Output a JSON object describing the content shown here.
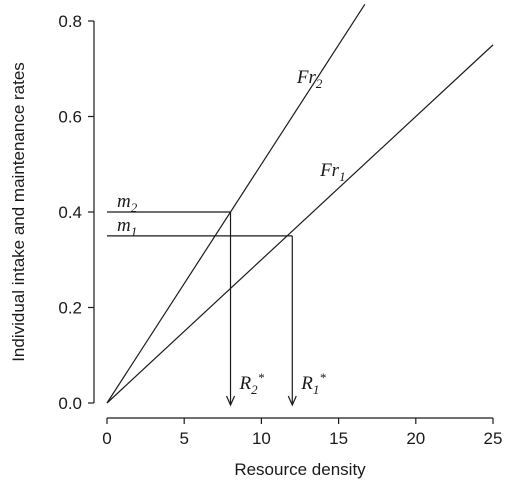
{
  "chart_data": {
    "type": "line",
    "title": "",
    "xlabel": "Resource density",
    "ylabel": "Individual intake and maintenance rates",
    "xlim": [
      0,
      25
    ],
    "ylim": [
      0,
      0.8
    ],
    "x_ticks": [
      0,
      5,
      10,
      15,
      20,
      25
    ],
    "y_ticks": [
      0.0,
      0.2,
      0.4,
      0.6,
      0.8
    ],
    "x_tick_labels": [
      "0",
      "5",
      "10",
      "15",
      "20",
      "25"
    ],
    "y_tick_labels": [
      "0.0",
      "0.2",
      "0.4",
      "0.6",
      "0.8"
    ],
    "grid": false,
    "series": [
      {
        "name": "Fr2",
        "label_main": "Fr",
        "label_sub": "2",
        "x": [
          0,
          16.7
        ],
        "y": [
          0,
          0.835
        ],
        "label_at": [
          12.3,
          0.67
        ]
      },
      {
        "name": "Fr1",
        "label_main": "Fr",
        "label_sub": "1",
        "x": [
          0,
          25
        ],
        "y": [
          0,
          0.75
        ],
        "label_at": [
          13.8,
          0.475
        ]
      }
    ],
    "maintenance": [
      {
        "label_main": "m",
        "label_sub": "2",
        "value": 0.4,
        "r_star": 8,
        "r_label_main": "R",
        "r_label_sub": "2",
        "r_label_sup": "*"
      },
      {
        "label_main": "m",
        "label_sub": "1",
        "value": 0.35,
        "r_star": 12,
        "r_label_main": "R",
        "r_label_sub": "1",
        "r_label_sup": "*"
      }
    ]
  }
}
